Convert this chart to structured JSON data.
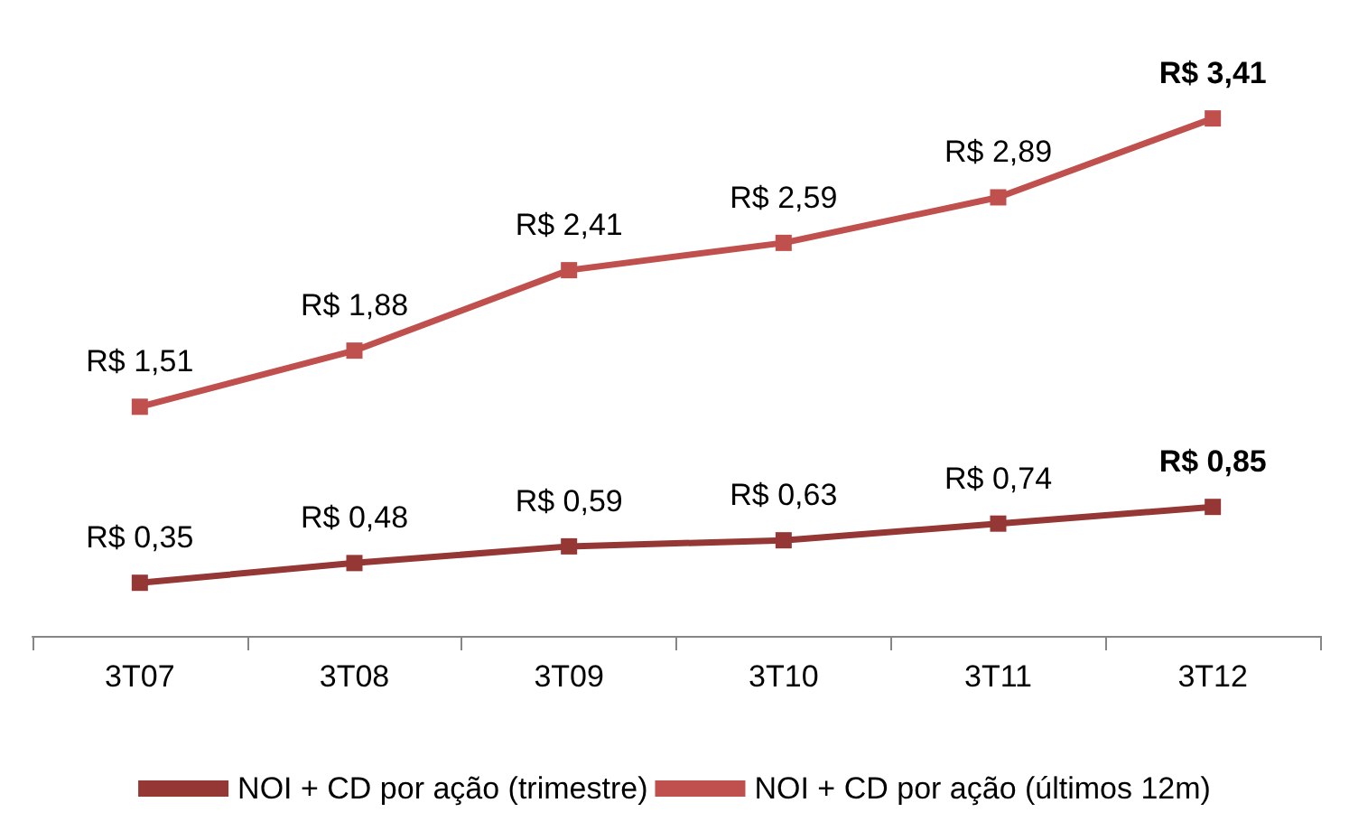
{
  "chart_data": {
    "type": "line",
    "categories": [
      "3T07",
      "3T08",
      "3T09",
      "3T10",
      "3T11",
      "3T12"
    ],
    "series": [
      {
        "name": "NOI + CD por ação (trimestre)",
        "color": "#953735",
        "values": [
          0.35,
          0.48,
          0.59,
          0.63,
          0.74,
          0.85
        ],
        "value_labels": [
          "R$ 0,35",
          "R$ 0,48",
          "R$ 0,59",
          "R$ 0,63",
          "R$ 0,74",
          "R$ 0,85"
        ]
      },
      {
        "name": "NOI + CD por ação (últimos 12m)",
        "color": "#c0504d",
        "values": [
          1.51,
          1.88,
          2.41,
          2.59,
          2.89,
          3.41
        ],
        "value_labels": [
          "R$ 1,51",
          "R$ 1,88",
          "R$ 2,41",
          "R$ 2,59",
          "R$ 2,89",
          "R$ 3,41"
        ]
      }
    ],
    "tick_labels": "x",
    "grid": false,
    "legend": "bottom",
    "marker": "square",
    "line_style": "solid"
  }
}
